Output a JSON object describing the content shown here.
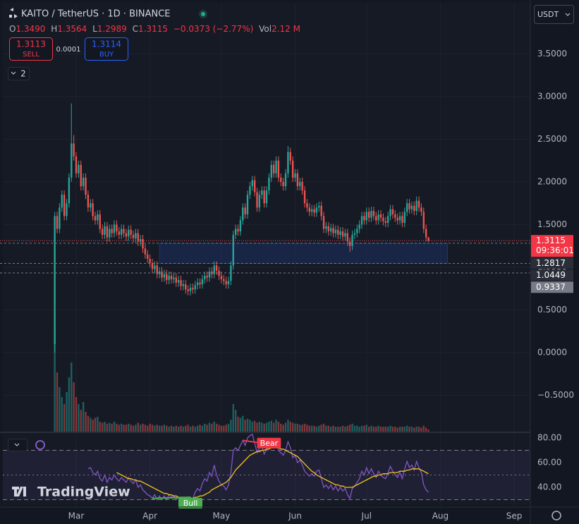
{
  "toolbar": {
    "symbol": "KAITO / TetherUS · 1D · BINANCE",
    "quote": [
      {
        "label": "O",
        "value": "1.3490"
      },
      {
        "label": "H",
        "value": "1.3564"
      },
      {
        "label": "L",
        "value": "1.2989"
      },
      {
        "label": "C",
        "value": "1.3115"
      }
    ],
    "change": "−0.0373 (−2.77%)",
    "volume": {
      "label": "Vol",
      "value": "2.12 M"
    },
    "sell": {
      "price": "1.3113",
      "label": "SELL"
    },
    "spread": "0.0001",
    "buy": {
      "price": "1.3114",
      "label": "BUY"
    },
    "indicators": "2",
    "currency": "USDT",
    "logo": "TradingView"
  },
  "chart_data": [
    {
      "type": "candlestick",
      "up_color": "#26a69a",
      "down_color": "#ef5350",
      "countdown": "09:36:01",
      "xlim": [
        -23,
        199.8
      ],
      "xticks": [
        {
          "value": 9,
          "label": "Mar"
        },
        {
          "value": 40,
          "label": "Apr"
        },
        {
          "value": 70,
          "label": "May"
        },
        {
          "value": 101,
          "label": "Jun"
        },
        {
          "value": 131,
          "label": "Jul"
        },
        {
          "value": 162,
          "label": "Aug"
        },
        {
          "value": 193,
          "label": "Sep"
        }
      ],
      "ylim": [
        -0.926,
        4.132
      ],
      "yticks": [
        {
          "value": 3.5,
          "label": "3.5000"
        },
        {
          "value": 3.0,
          "label": "3.0000"
        },
        {
          "value": 2.5,
          "label": "2.5000"
        },
        {
          "value": 2.0,
          "label": "2.0000"
        },
        {
          "value": 1.5,
          "label": "1.5000"
        },
        {
          "value": 1.0,
          "label": "1.0000"
        },
        {
          "value": 0.5,
          "label": "0.5000"
        },
        {
          "value": 0,
          "label": "0.0000"
        },
        {
          "value": -0.5,
          "label": "−0.5000"
        }
      ],
      "grid": true,
      "levels": [
        1.2817,
        1.0449,
        0.9337
      ],
      "zone_x": [
        44,
        165
      ],
      "open": [
        0.1,
        1.6,
        1.45,
        1.7,
        1.85,
        1.6,
        1.75,
        2.05,
        2.45,
        2.3,
        2.1,
        2.2,
        1.95,
        2.05,
        1.85,
        1.7,
        1.75,
        1.6,
        1.55,
        1.62,
        1.45,
        1.38,
        1.48,
        1.35,
        1.45,
        1.4,
        1.5,
        1.42,
        1.38,
        1.45,
        1.4,
        1.36,
        1.44,
        1.38,
        1.34,
        1.4,
        1.3,
        1.33,
        1.22,
        1.15,
        1.1,
        1.05,
        0.98,
        1.02,
        0.92,
        0.95,
        0.88,
        0.92,
        0.85,
        0.9,
        0.86,
        0.88,
        0.82,
        0.85,
        0.78,
        0.8,
        0.74,
        0.72,
        0.76,
        0.74,
        0.79,
        0.82,
        0.8,
        0.86,
        0.9,
        0.88,
        0.95,
        0.92,
        1.02,
        0.96,
        0.9,
        0.86,
        0.84,
        0.8,
        0.84,
        1.02,
        1.38,
        1.45,
        1.42,
        1.55,
        1.7,
        1.62,
        1.85,
        1.95,
        2.02,
        1.88,
        1.7,
        1.85,
        1.9,
        1.75,
        1.9,
        2.05,
        2.2,
        2.1,
        2.25,
        2.05,
        2.0,
        1.95,
        2.1,
        2.35,
        2.25,
        2.05,
        2.1,
        1.95,
        2.0,
        1.9,
        1.75,
        1.7,
        1.65,
        1.68,
        1.64,
        1.7,
        1.72,
        1.6,
        1.45,
        1.48,
        1.42,
        1.46,
        1.4,
        1.44,
        1.38,
        1.42,
        1.36,
        1.4,
        1.3,
        1.25,
        1.38,
        1.4,
        1.45,
        1.5,
        1.6,
        1.55,
        1.65,
        1.58,
        1.66,
        1.6,
        1.55,
        1.62,
        1.58,
        1.54,
        1.52,
        1.6,
        1.68,
        1.62,
        1.58,
        1.55,
        1.6,
        1.52,
        1.65,
        1.75,
        1.68,
        1.72,
        1.66,
        1.78,
        1.7,
        1.65,
        1.45,
        1.349
      ],
      "high": [
        1.65,
        1.65,
        1.75,
        1.9,
        1.9,
        1.8,
        2.1,
        2.92,
        2.55,
        2.35,
        2.25,
        2.25,
        2.1,
        2.1,
        1.9,
        1.8,
        1.8,
        1.65,
        1.67,
        1.67,
        1.5,
        1.53,
        1.53,
        1.5,
        1.5,
        1.55,
        1.55,
        1.47,
        1.5,
        1.5,
        1.45,
        1.49,
        1.49,
        1.43,
        1.45,
        1.45,
        1.38,
        1.38,
        1.27,
        1.2,
        1.15,
        1.1,
        1.07,
        1.07,
        1.0,
        1.0,
        0.97,
        0.97,
        0.95,
        0.95,
        0.93,
        0.93,
        0.9,
        0.9,
        0.85,
        0.85,
        0.79,
        0.81,
        0.81,
        0.84,
        0.87,
        0.87,
        0.91,
        0.95,
        0.95,
        1.0,
        1.0,
        1.07,
        1.07,
        1.01,
        0.95,
        0.91,
        0.89,
        0.89,
        1.07,
        1.43,
        1.5,
        1.5,
        1.6,
        1.75,
        1.75,
        1.9,
        2.0,
        2.07,
        2.07,
        1.93,
        1.9,
        1.95,
        1.95,
        1.95,
        2.1,
        2.25,
        2.25,
        2.3,
        2.3,
        2.1,
        2.05,
        2.15,
        2.42,
        2.4,
        2.3,
        2.15,
        2.15,
        2.05,
        2.05,
        1.95,
        1.8,
        1.75,
        1.73,
        1.73,
        1.75,
        1.77,
        1.77,
        1.65,
        1.53,
        1.53,
        1.51,
        1.51,
        1.49,
        1.49,
        1.47,
        1.47,
        1.45,
        1.45,
        1.35,
        1.43,
        1.45,
        1.5,
        1.55,
        1.65,
        1.65,
        1.7,
        1.7,
        1.71,
        1.71,
        1.65,
        1.67,
        1.67,
        1.63,
        1.59,
        1.65,
        1.73,
        1.73,
        1.67,
        1.63,
        1.65,
        1.65,
        1.7,
        1.8,
        1.8,
        1.77,
        1.77,
        1.83,
        1.83,
        1.75,
        1.7,
        1.5,
        1.3564
      ],
      "low": [
        0.0,
        1.4,
        1.4,
        1.65,
        1.55,
        1.55,
        1.7,
        2.0,
        2.25,
        2.05,
        2.05,
        1.9,
        1.9,
        1.8,
        1.65,
        1.65,
        1.55,
        1.5,
        1.5,
        1.4,
        1.33,
        1.33,
        1.3,
        1.3,
        1.35,
        1.35,
        1.37,
        1.33,
        1.33,
        1.35,
        1.31,
        1.31,
        1.33,
        1.29,
        1.29,
        1.25,
        1.25,
        1.17,
        1.1,
        1.05,
        1.0,
        0.93,
        0.93,
        0.87,
        0.87,
        0.83,
        0.83,
        0.8,
        0.8,
        0.81,
        0.81,
        0.77,
        0.77,
        0.73,
        0.73,
        0.69,
        0.67,
        0.67,
        0.69,
        0.69,
        0.74,
        0.75,
        0.75,
        0.81,
        0.83,
        0.83,
        0.87,
        0.87,
        0.91,
        0.85,
        0.81,
        0.79,
        0.75,
        0.75,
        0.79,
        0.97,
        1.33,
        1.37,
        1.37,
        1.5,
        1.57,
        1.57,
        1.8,
        1.9,
        1.83,
        1.65,
        1.65,
        1.8,
        1.7,
        1.7,
        1.85,
        2.0,
        2.05,
        2.05,
        2.0,
        1.95,
        1.9,
        1.9,
        2.05,
        2.2,
        2.0,
        2.0,
        1.9,
        1.9,
        1.85,
        1.7,
        1.65,
        1.6,
        1.6,
        1.59,
        1.59,
        1.65,
        1.55,
        1.4,
        1.4,
        1.37,
        1.37,
        1.35,
        1.35,
        1.33,
        1.33,
        1.31,
        1.31,
        1.25,
        1.18,
        1.2,
        1.33,
        1.35,
        1.4,
        1.45,
        1.5,
        1.5,
        1.53,
        1.53,
        1.55,
        1.5,
        1.5,
        1.53,
        1.49,
        1.47,
        1.47,
        1.55,
        1.57,
        1.53,
        1.5,
        1.5,
        1.47,
        1.47,
        1.6,
        1.63,
        1.63,
        1.61,
        1.61,
        1.65,
        1.6,
        1.4,
        1.3,
        1.2989
      ],
      "close": [
        1.6,
        1.45,
        1.7,
        1.85,
        1.6,
        1.75,
        2.05,
        2.45,
        2.3,
        2.1,
        2.2,
        1.95,
        2.05,
        1.85,
        1.7,
        1.75,
        1.6,
        1.55,
        1.62,
        1.45,
        1.38,
        1.48,
        1.35,
        1.45,
        1.4,
        1.5,
        1.42,
        1.38,
        1.45,
        1.4,
        1.36,
        1.44,
        1.38,
        1.34,
        1.4,
        1.3,
        1.33,
        1.22,
        1.15,
        1.1,
        1.05,
        0.98,
        1.02,
        0.92,
        0.95,
        0.88,
        0.92,
        0.85,
        0.9,
        0.86,
        0.88,
        0.82,
        0.85,
        0.78,
        0.8,
        0.74,
        0.72,
        0.76,
        0.74,
        0.79,
        0.82,
        0.8,
        0.86,
        0.9,
        0.88,
        0.95,
        0.92,
        1.02,
        0.96,
        0.9,
        0.86,
        0.84,
        0.8,
        0.84,
        1.02,
        1.38,
        1.45,
        1.42,
        1.55,
        1.7,
        1.62,
        1.85,
        1.95,
        2.02,
        1.88,
        1.7,
        1.85,
        1.9,
        1.75,
        1.9,
        2.05,
        2.2,
        2.1,
        2.25,
        2.05,
        2.0,
        1.95,
        2.1,
        2.35,
        2.25,
        2.05,
        2.1,
        1.95,
        2.0,
        1.9,
        1.75,
        1.7,
        1.65,
        1.68,
        1.64,
        1.7,
        1.72,
        1.6,
        1.45,
        1.48,
        1.42,
        1.46,
        1.4,
        1.44,
        1.38,
        1.42,
        1.36,
        1.4,
        1.3,
        1.25,
        1.38,
        1.4,
        1.45,
        1.5,
        1.6,
        1.55,
        1.65,
        1.58,
        1.66,
        1.6,
        1.55,
        1.62,
        1.58,
        1.54,
        1.52,
        1.6,
        1.68,
        1.62,
        1.58,
        1.55,
        1.6,
        1.52,
        1.65,
        1.75,
        1.68,
        1.72,
        1.66,
        1.78,
        1.7,
        1.65,
        1.45,
        1.349,
        1.3115
      ],
      "volume": [
        104,
        60,
        45,
        35,
        28,
        40,
        55,
        70,
        50,
        35,
        28,
        22,
        30,
        20,
        16,
        14,
        12,
        14,
        15,
        10,
        9,
        10,
        8,
        9,
        8,
        10,
        8,
        7,
        8,
        7,
        7,
        8,
        7,
        6,
        7,
        9,
        7,
        8,
        7,
        6,
        8,
        7,
        6,
        7,
        6,
        6,
        7,
        6,
        5,
        6,
        5,
        6,
        5,
        6,
        5,
        6,
        7,
        5,
        6,
        5,
        6,
        7,
        6,
        8,
        7,
        9,
        8,
        10,
        8,
        7,
        6,
        6,
        7,
        8,
        12,
        28,
        22,
        15,
        14,
        16,
        12,
        13,
        12,
        10,
        11,
        9,
        10,
        9,
        8,
        9,
        10,
        11,
        9,
        12,
        10,
        8,
        7,
        9,
        12,
        10,
        9,
        8,
        8,
        7,
        7,
        8,
        7,
        6,
        6,
        6,
        5,
        6,
        7,
        8,
        6,
        6,
        5,
        6,
        5,
        5,
        5,
        6,
        5,
        6,
        7,
        8,
        6,
        6,
        5,
        6,
        6,
        7,
        5,
        6,
        5,
        5,
        6,
        5,
        5,
        5,
        5,
        6,
        5,
        5,
        4,
        5,
        5,
        5,
        6,
        5,
        5,
        4,
        5,
        5,
        4,
        6,
        4,
        2.12
      ]
    },
    {
      "type": "line",
      "ylim": [
        24.57,
        83.43
      ],
      "yticks": [
        {
          "value": 80,
          "label": "80.00"
        },
        {
          "value": 60,
          "label": "60.00"
        },
        {
          "value": 40,
          "label": "40.00"
        }
      ],
      "levels": [
        70,
        50,
        30
      ],
      "series": [
        {
          "color": "#7e57c2",
          "values": [
            null,
            null,
            null,
            null,
            null,
            null,
            null,
            null,
            null,
            null,
            null,
            null,
            null,
            null,
            55,
            56,
            52,
            50,
            53,
            47,
            45,
            50,
            44,
            48,
            46,
            50,
            47,
            45,
            48,
            46,
            44,
            48,
            45,
            43,
            46,
            40,
            42,
            38,
            36,
            34,
            33,
            31,
            34,
            30,
            33,
            30,
            33,
            30,
            34,
            32,
            33,
            30,
            32,
            29,
            31,
            28,
            27,
            32,
            31,
            36,
            39,
            37,
            43,
            47,
            45,
            52,
            49,
            58,
            50,
            45,
            42,
            41,
            38,
            42,
            52,
            70,
            72,
            70,
            74,
            78,
            74,
            80,
            82,
            83,
            76,
            68,
            72,
            73,
            67,
            71,
            75,
            78,
            74,
            78,
            70,
            68,
            66,
            70,
            77,
            72,
            64,
            66,
            60,
            62,
            58,
            53,
            51,
            49,
            51,
            49,
            53,
            54,
            47,
            40,
            42,
            39,
            42,
            38,
            41,
            37,
            40,
            37,
            39,
            34,
            31,
            39,
            41,
            44,
            47,
            53,
            50,
            56,
            51,
            55,
            51,
            48,
            53,
            50,
            48,
            47,
            52,
            57,
            53,
            50,
            48,
            52,
            47,
            55,
            61,
            56,
            58,
            54,
            61,
            56,
            52,
            42,
            38,
            36
          ]
        },
        {
          "color": "#f0c419",
          "values": [
            null,
            null,
            null,
            null,
            null,
            null,
            null,
            null,
            null,
            null,
            null,
            null,
            null,
            null,
            null,
            null,
            null,
            null,
            null,
            null,
            null,
            null,
            null,
            null,
            null,
            null,
            52,
            51,
            50,
            49,
            48,
            47,
            47,
            46,
            46,
            45,
            45,
            44,
            43,
            42,
            41,
            40,
            39,
            38,
            37,
            36,
            35,
            35,
            34,
            34,
            33,
            33,
            32,
            32,
            32,
            31,
            31,
            31,
            31,
            32,
            32,
            33,
            33,
            34,
            35,
            36,
            38,
            39,
            40,
            41,
            42,
            43,
            44,
            46,
            48,
            51,
            54,
            56,
            58,
            60,
            62,
            64,
            66,
            67,
            68,
            69,
            69,
            70,
            70,
            71,
            71,
            72,
            72,
            72,
            72,
            71,
            71,
            70,
            69,
            68,
            67,
            66,
            65,
            63,
            61,
            59,
            57,
            55,
            53,
            52,
            50,
            49,
            48,
            47,
            46,
            45,
            44,
            43,
            42,
            42,
            41,
            41,
            40,
            40,
            40,
            40,
            41,
            42,
            43,
            44,
            45,
            46,
            47,
            48,
            49,
            49,
            50,
            50,
            51,
            51,
            51,
            52,
            52,
            52,
            52,
            53,
            53,
            53,
            54,
            54,
            55,
            55,
            55,
            55,
            54,
            53,
            52,
            51
          ]
        }
      ],
      "annotations": [
        {
          "label": "Bear",
          "color": "#f23645",
          "points": [
            79,
            90
          ]
        },
        {
          "label": "Bull",
          "color": "#4caf50",
          "points": [
            41,
            57
          ]
        }
      ]
    }
  ]
}
